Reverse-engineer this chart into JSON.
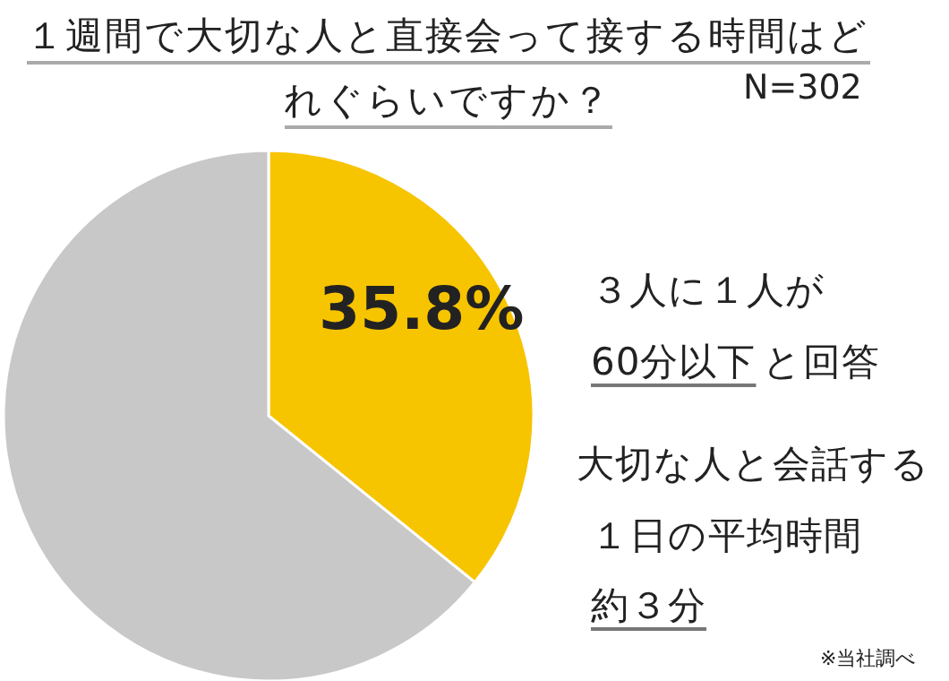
{
  "chart_data": {
    "type": "pie",
    "title": "１週間で大切な人と直接会って接する時間はどれぐらいですか？",
    "subtitle": "N=302",
    "categories": [
      null,
      null
    ],
    "values": [
      35.8,
      64.2
    ],
    "colors": [
      "#f7c400",
      "#c8c8c8"
    ],
    "value_labels": [
      "35.8%",
      null
    ],
    "annotations": [
      "３人に１人が",
      "60分以下",
      "と回答",
      "大切な人と会話する",
      "１日の平均時間",
      "約３分",
      "※当社調べ"
    ]
  }
}
